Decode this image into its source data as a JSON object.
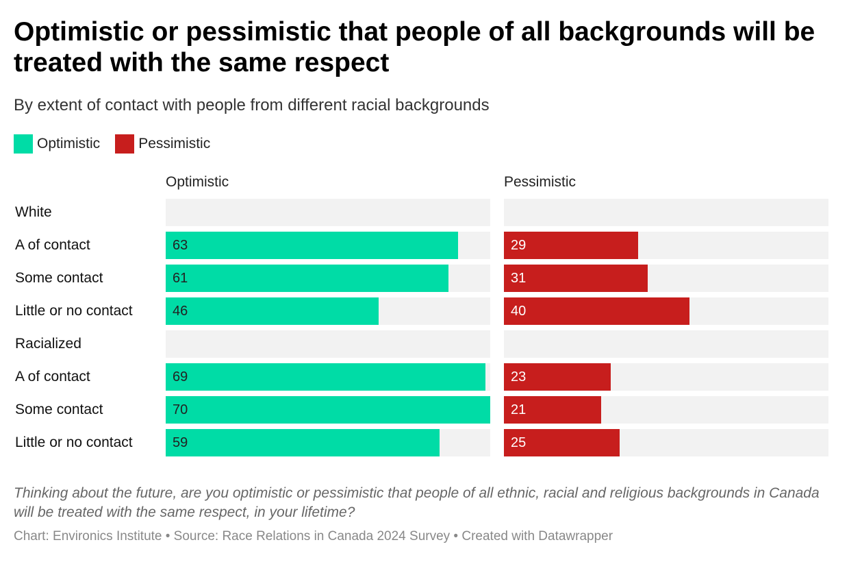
{
  "title": "Optimistic or pessimistic that people of all backgrounds will be treated with the same respect",
  "subtitle": "By extent of contact with people from different racial backgrounds",
  "legend": [
    {
      "label": "Optimistic",
      "color": "#00dca6"
    },
    {
      "label": "Pessimistic",
      "color": "#c71e1d"
    }
  ],
  "note": "Thinking about the future, are you optimistic or pessimistic that people of all ethnic, racial and religious backgrounds in Canada will be treated with the same respect, in your lifetime?",
  "footer": "Chart: Environics Institute • Source: Race Relations in Canada 2024 Survey • Created with Datawrapper",
  "chart_data": {
    "type": "bar",
    "orientation": "horizontal",
    "layout": "split-bars",
    "title": "Optimistic or pessimistic that people of all backgrounds will be treated with the same respect",
    "subtitle": "By extent of contact with people from different racial backgrounds",
    "xlim": [
      0,
      70
    ],
    "grid": false,
    "legend_position": "top-left",
    "columns": [
      "Optimistic",
      "Pessimistic"
    ],
    "colors": {
      "Optimistic": "#00dca6",
      "Pessimistic": "#c71e1d"
    },
    "categories": [
      "White",
      "A of contact",
      "Some contact",
      "Little or no contact",
      "Racialized",
      "A of contact",
      "Some contact",
      "Little or no contact"
    ],
    "series": [
      {
        "name": "Optimistic",
        "values": [
          null,
          63,
          61,
          46,
          null,
          69,
          70,
          59
        ]
      },
      {
        "name": "Pessimistic",
        "values": [
          null,
          29,
          31,
          40,
          null,
          23,
          21,
          25
        ]
      }
    ]
  }
}
